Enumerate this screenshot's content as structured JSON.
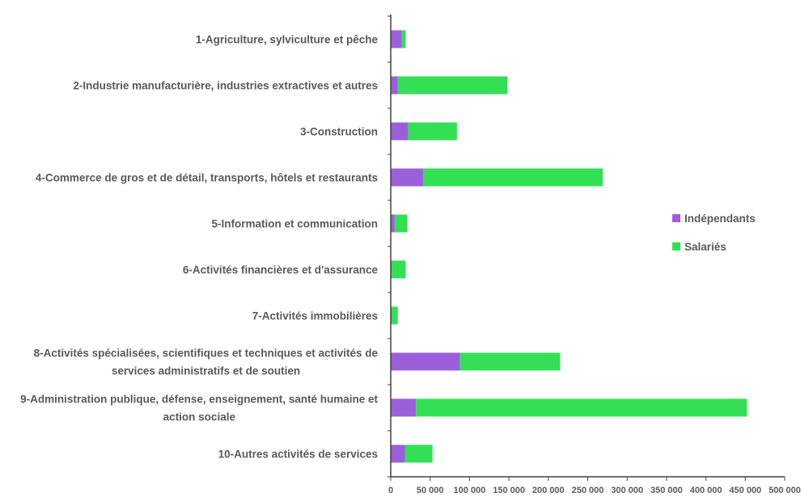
{
  "chart_data": {
    "type": "bar",
    "orientation": "horizontal",
    "stacked": true,
    "categories": [
      [
        "1-Agriculture, sylviculture et pêche"
      ],
      [
        "2-Industrie manufacturière, industries extractives et autres"
      ],
      [
        "3-Construction"
      ],
      [
        "4-Commerce de gros et de détail, transports, hôtels et restaurants"
      ],
      [
        "5-Information et communication"
      ],
      [
        "6-Activités financières et d'assurance"
      ],
      [
        "7-Activités immobilières"
      ],
      [
        "8-Activités spécialisées, scientifiques et techniques et activités de",
        "services administratifs et de soutien"
      ],
      [
        "9-Administration publique, défense, enseignement, santé humaine et",
        "action sociale"
      ],
      [
        "10-Autres activités de services"
      ]
    ],
    "series": [
      {
        "name": "Indépendants",
        "color": "#9b5fdc",
        "values": [
          14000,
          9000,
          22000,
          41000,
          5000,
          1000,
          1000,
          88000,
          32000,
          18000
        ]
      },
      {
        "name": "Salariés",
        "color": "#33e055",
        "values": [
          5000,
          139000,
          62000,
          228000,
          16000,
          18000,
          8000,
          127000,
          420000,
          35000
        ]
      }
    ],
    "xlim": [
      0,
      500000
    ],
    "xticks": [
      "0",
      "50 000",
      "100 000",
      "150 000",
      "200 000",
      "250 000",
      "300 000",
      "350 000",
      "400 000",
      "450 000",
      "500 000"
    ],
    "grid": false,
    "legend_position": "right"
  }
}
